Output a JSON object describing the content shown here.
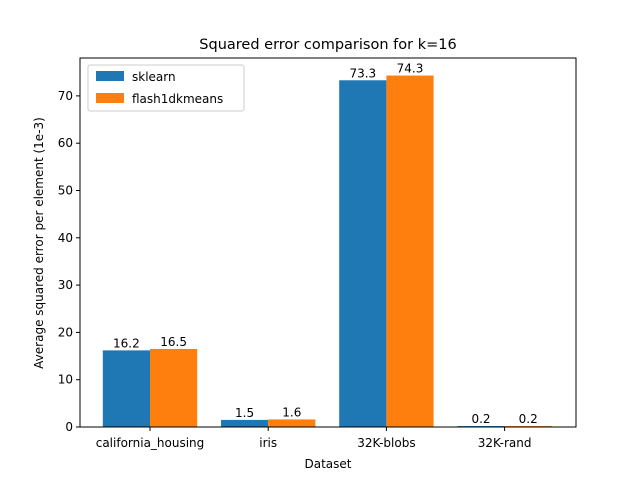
{
  "chart_data": {
    "type": "bar",
    "title": "Squared error comparison for k=16",
    "xlabel": "Dataset",
    "ylabel": "Average squared error per element (1e-3)",
    "categories": [
      "california_housing",
      "iris",
      "32K-blobs",
      "32K-rand"
    ],
    "series": [
      {
        "name": "sklearn",
        "color": "#1f77b4",
        "values": [
          16.2,
          1.5,
          73.3,
          0.2
        ],
        "labels": [
          "16.2",
          "1.5",
          "73.3",
          "0.2"
        ]
      },
      {
        "name": "flash1dkmeans",
        "color": "#ff7f0e",
        "values": [
          16.5,
          1.6,
          74.3,
          0.2
        ],
        "labels": [
          "16.5",
          "1.6",
          "74.3",
          "0.2"
        ]
      }
    ],
    "ylim": [
      0,
      78.01
    ],
    "yticks": [
      0,
      10,
      20,
      30,
      40,
      50,
      60,
      70
    ],
    "grid": false,
    "legend_position": "top-left"
  }
}
